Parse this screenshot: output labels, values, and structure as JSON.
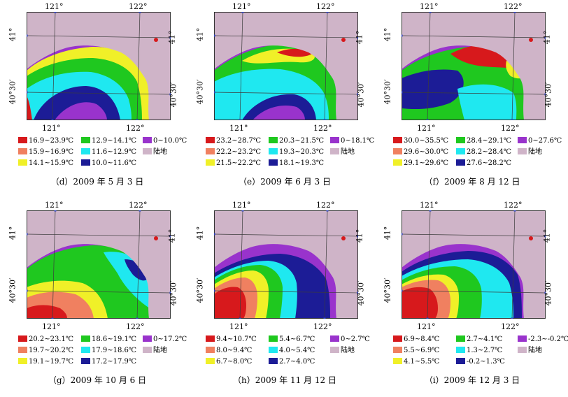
{
  "colors": {
    "land": "#cfb4c8",
    "grid": "#3c3c3c",
    "tick_marker": "#2a3fc6"
  },
  "ticks": {
    "lon1": "121°",
    "lon2": "122°",
    "lat1": "41°",
    "lat2": "40°30′"
  },
  "panels": [
    {
      "caption": "（d）2009 年 5 月 3 日",
      "legend": [
        {
          "label": "16.9~23.9℃",
          "color": "#d7191c"
        },
        {
          "label": "12.9~14.1℃",
          "color": "#1fc81f"
        },
        {
          "label": "0~10.0℃",
          "color": "#9933cc"
        },
        {
          "label": "15.9~16.9℃",
          "color": "#f08060"
        },
        {
          "label": "11.6~12.9℃",
          "color": "#1fe8f0"
        },
        {
          "label": "陆地",
          "color": "#cfb4c8"
        },
        {
          "label": "14.1~15.9℃",
          "color": "#f0f028"
        },
        {
          "label": "10.0~11.6℃",
          "color": "#1c1c96"
        }
      ]
    },
    {
      "caption": "（e）2009 年 6 月 3 日",
      "legend": [
        {
          "label": "23.2~28.7℃",
          "color": "#d7191c"
        },
        {
          "label": "20.3~21.5℃",
          "color": "#1fc81f"
        },
        {
          "label": "0~18.1℃",
          "color": "#9933cc"
        },
        {
          "label": "22.2~23.2℃",
          "color": "#f08060"
        },
        {
          "label": "19.3~20.3℃",
          "color": "#1fe8f0"
        },
        {
          "label": "陆地",
          "color": "#cfb4c8"
        },
        {
          "label": "21.5~22.2℃",
          "color": "#f0f028"
        },
        {
          "label": "18.1~19.3℃",
          "color": "#1c1c96"
        }
      ]
    },
    {
      "caption": "（f）2009 年 8 月 12 日",
      "legend": [
        {
          "label": "30.0~35.5℃",
          "color": "#d7191c"
        },
        {
          "label": "28.4~29.1℃",
          "color": "#1fc81f"
        },
        {
          "label": "0~27.6℃",
          "color": "#9933cc"
        },
        {
          "label": "29.6~30.0℃",
          "color": "#f08060"
        },
        {
          "label": "28.2~28.4℃",
          "color": "#1fe8f0"
        },
        {
          "label": "陆地",
          "color": "#cfb4c8"
        },
        {
          "label": "29.1~29.6℃",
          "color": "#f0f028"
        },
        {
          "label": "27.6~28.2℃",
          "color": "#1c1c96"
        }
      ]
    },
    {
      "caption": "（g）2009 年 10 月 6 日",
      "legend": [
        {
          "label": "20.2~23.1℃",
          "color": "#d7191c"
        },
        {
          "label": "18.6~19.1℃",
          "color": "#1fc81f"
        },
        {
          "label": "0~17.2℃",
          "color": "#9933cc"
        },
        {
          "label": "19.7~20.2℃",
          "color": "#f08060"
        },
        {
          "label": "17.9~18.6℃",
          "color": "#1fe8f0"
        },
        {
          "label": "陆地",
          "color": "#cfb4c8"
        },
        {
          "label": "19.1~19.7℃",
          "color": "#f0f028"
        },
        {
          "label": "17.2~17.9℃",
          "color": "#1c1c96"
        }
      ]
    },
    {
      "caption": "（h）2009 年 11 月 12 日",
      "legend": [
        {
          "label": "9.4~10.7℃",
          "color": "#d7191c"
        },
        {
          "label": "5.4~6.7℃",
          "color": "#1fc81f"
        },
        {
          "label": "0~2.7℃",
          "color": "#9933cc"
        },
        {
          "label": "8.0~9.4℃",
          "color": "#f08060"
        },
        {
          "label": "4.0~5.4℃",
          "color": "#1fe8f0"
        },
        {
          "label": "陆地",
          "color": "#cfb4c8"
        },
        {
          "label": "6.7~8.0℃",
          "color": "#f0f028"
        },
        {
          "label": "2.7~4.0℃",
          "color": "#1c1c96"
        }
      ]
    },
    {
      "caption": "（i）2009 年 12 月 3 日",
      "legend": [
        {
          "label": "6.9~8.4℃",
          "color": "#d7191c"
        },
        {
          "label": "2.7~4.1℃",
          "color": "#1fc81f"
        },
        {
          "label": "-2.3~-0.2℃",
          "color": "#9933cc"
        },
        {
          "label": "5.5~6.9℃",
          "color": "#f08060"
        },
        {
          "label": "1.3~2.7℃",
          "color": "#1fe8f0"
        },
        {
          "label": "陆地",
          "color": "#cfb4c8"
        },
        {
          "label": "4.1~5.5℃",
          "color": "#f0f028"
        },
        {
          "label": "-0.2~1.3℃",
          "color": "#1c1c96"
        }
      ]
    }
  ]
}
